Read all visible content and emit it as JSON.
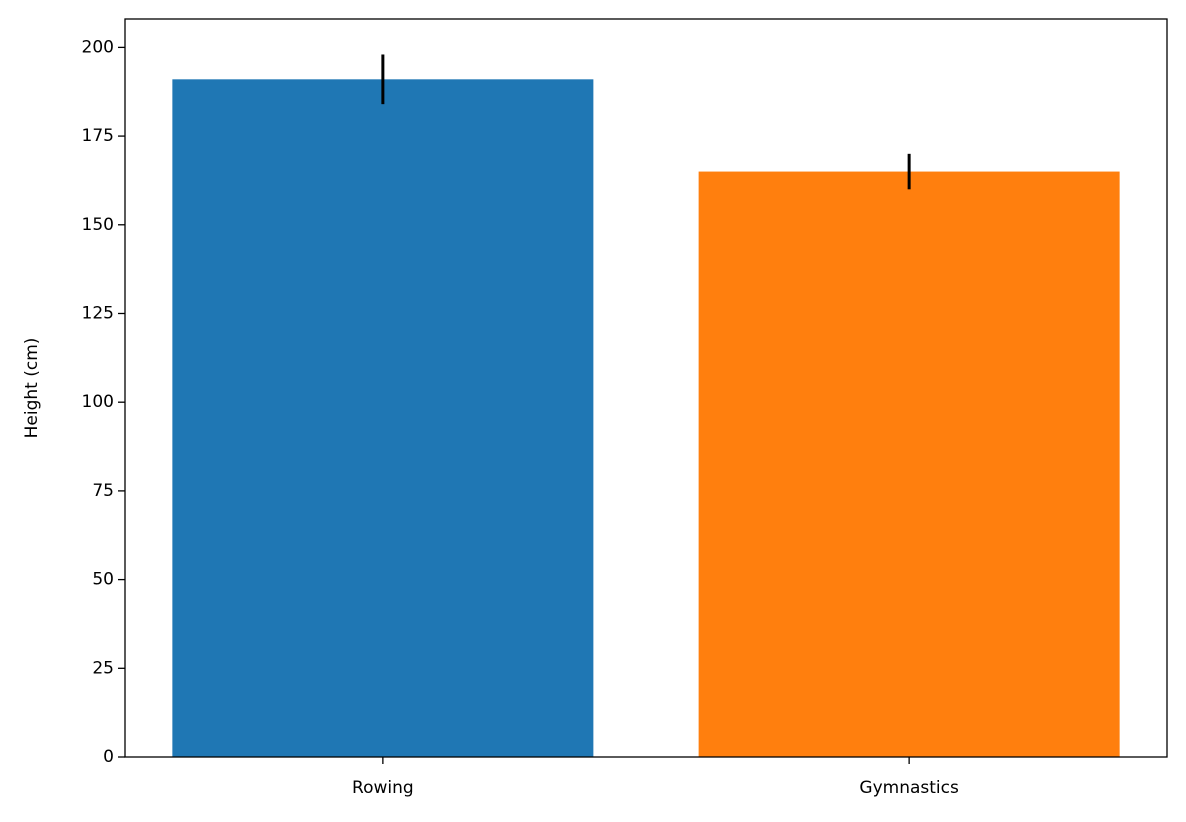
{
  "chart_data": {
    "type": "bar",
    "ylabel": "Height (cm)",
    "categories": [
      "Rowing",
      "Gymnastics"
    ],
    "values": [
      191,
      165
    ],
    "errors": [
      7,
      5
    ],
    "colors": [
      "#1f77b4",
      "#ff7f0e"
    ],
    "error_color": "#000000",
    "ylim": [
      0,
      208
    ],
    "yticks": [
      0,
      25,
      50,
      75,
      100,
      125,
      150,
      175,
      200
    ],
    "grid": false
  }
}
